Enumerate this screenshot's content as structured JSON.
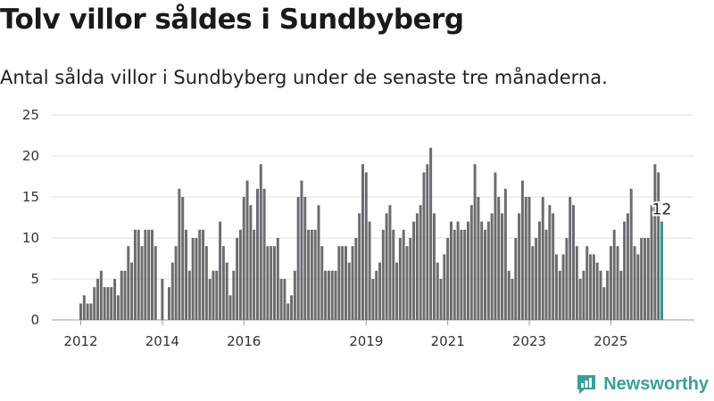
{
  "title": "Tolv villor såldes i Sundbyberg",
  "subtitle": "Antal sålda villor i Sundbyberg under de senaste tre månaderna.",
  "brand": "Newsworthy",
  "colors": {
    "bar": "#6d6b70",
    "highlight": "#2a9a90",
    "grid": "#e2e2e2",
    "brand": "#3a9f98"
  },
  "chart_data": {
    "type": "bar",
    "ylim": [
      0,
      25
    ],
    "y_ticks": [
      "0",
      "5",
      "10",
      "15",
      "20",
      "25"
    ],
    "x_ticks": [
      "2012",
      "2014",
      "2016",
      "2019",
      "2021",
      "2023",
      "2025"
    ],
    "grid": true,
    "highlight_label": "12",
    "values": [
      2,
      3,
      2,
      2,
      4,
      5,
      6,
      4,
      4,
      4,
      5,
      3,
      6,
      6,
      9,
      7,
      11,
      11,
      9,
      11,
      11,
      11,
      9,
      0,
      5,
      0,
      4,
      7,
      9,
      16,
      15,
      11,
      6,
      10,
      10,
      11,
      11,
      9,
      5,
      6,
      6,
      12,
      9,
      7,
      3,
      6,
      10,
      11,
      15,
      17,
      14,
      11,
      16,
      19,
      16,
      9,
      9,
      9,
      10,
      5,
      5,
      2,
      3,
      6,
      15,
      17,
      15,
      11,
      11,
      11,
      14,
      9,
      6,
      6,
      6,
      6,
      9,
      9,
      9,
      7,
      9,
      10,
      13,
      19,
      18,
      12,
      5,
      6,
      7,
      11,
      13,
      14,
      11,
      7,
      10,
      11,
      9,
      10,
      12,
      13,
      14,
      18,
      19,
      21,
      13,
      7,
      5,
      8,
      10,
      12,
      11,
      12,
      11,
      11,
      12,
      14,
      19,
      15,
      12,
      11,
      12,
      13,
      18,
      15,
      13,
      16,
      6,
      5,
      10,
      13,
      17,
      15,
      15,
      9,
      10,
      12,
      15,
      11,
      14,
      13,
      8,
      6,
      8,
      10,
      15,
      14,
      9,
      5,
      6,
      9,
      8,
      8,
      7,
      6,
      4,
      6,
      9,
      11,
      9,
      6,
      12,
      13,
      16,
      9,
      8,
      10,
      10,
      10,
      14,
      19,
      18,
      12
    ]
  }
}
